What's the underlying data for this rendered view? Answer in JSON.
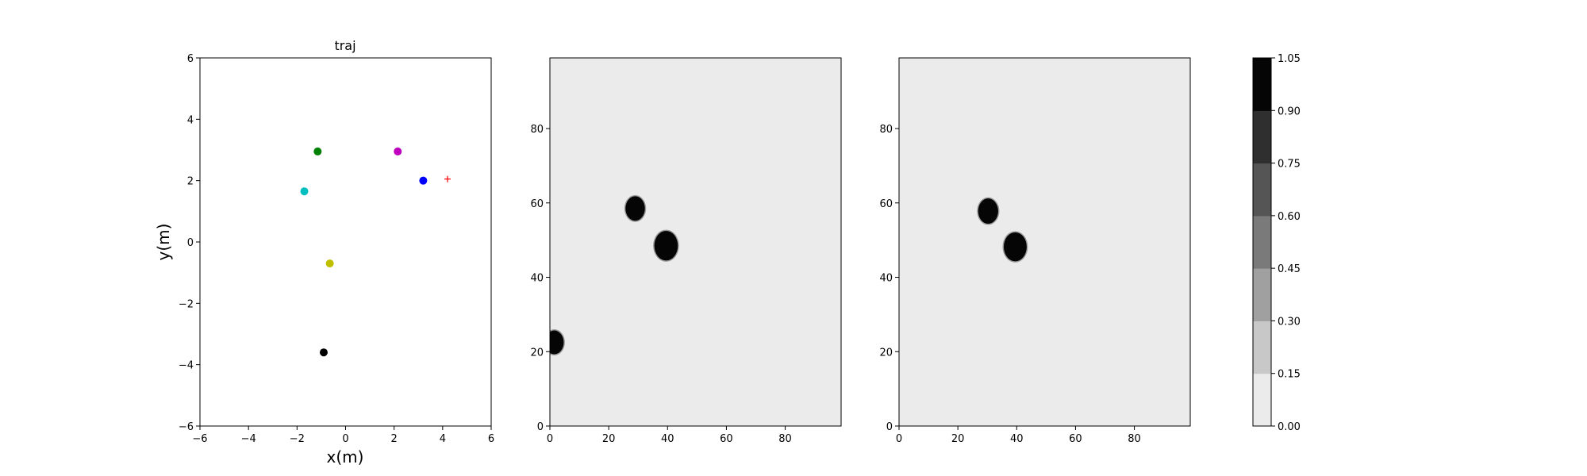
{
  "colors": {
    "background_field": "#ebebeb",
    "obstacle": "#050505",
    "axes": "#000000"
  },
  "chart_data": [
    {
      "type": "scatter",
      "title": "traj",
      "xlabel": "x(m)",
      "ylabel": "y(m)",
      "xlim": [
        -6,
        6
      ],
      "ylim": [
        -6,
        6
      ],
      "xticks": [
        "−6",
        "−4",
        "−2",
        "0",
        "2",
        "4",
        "6"
      ],
      "yticks": [
        "−6",
        "−4",
        "−2",
        "0",
        "2",
        "4",
        "6"
      ],
      "grid": false,
      "points": [
        {
          "x": -1.15,
          "y": 2.95,
          "color": "#008000",
          "marker": "dot"
        },
        {
          "x": 2.15,
          "y": 2.95,
          "color": "#bf00bf",
          "marker": "dot"
        },
        {
          "x": 3.2,
          "y": 2.0,
          "color": "#0000ff",
          "marker": "dot"
        },
        {
          "x": -1.7,
          "y": 1.65,
          "color": "#00bfbf",
          "marker": "dot"
        },
        {
          "x": -0.65,
          "y": -0.7,
          "color": "#bfbf00",
          "marker": "dot"
        },
        {
          "x": -0.9,
          "y": -3.6,
          "color": "#000000",
          "marker": "dot"
        },
        {
          "x": 4.2,
          "y": 2.05,
          "color": "#ff0000",
          "marker": "plus"
        }
      ]
    },
    {
      "type": "heatmap",
      "title": "",
      "xlim": [
        0,
        99
      ],
      "ylim": [
        0,
        99
      ],
      "xticks": [
        "0",
        "20",
        "40",
        "60",
        "80"
      ],
      "yticks": [
        "0",
        "20",
        "40",
        "60",
        "80"
      ],
      "blobs": [
        {
          "cx": 29,
          "cy": 58.5,
          "r": 3.3
        },
        {
          "cx": 39.5,
          "cy": 48.5,
          "r": 4.0
        },
        {
          "cx": 1.5,
          "cy": 22.5,
          "r": 3.2
        }
      ]
    },
    {
      "type": "heatmap",
      "title": "",
      "xlim": [
        0,
        99
      ],
      "ylim": [
        0,
        99
      ],
      "xticks": [
        "0",
        "20",
        "40",
        "60",
        "80"
      ],
      "yticks": [
        "0",
        "20",
        "40",
        "60",
        "80"
      ],
      "blobs": [
        {
          "cx": 30.3,
          "cy": 57.8,
          "r": 3.4
        },
        {
          "cx": 39.5,
          "cy": 48.2,
          "r": 3.9
        }
      ]
    }
  ],
  "colorbar": {
    "ticks": [
      "0.00",
      "0.15",
      "0.30",
      "0.45",
      "0.60",
      "0.75",
      "0.90",
      "1.05"
    ],
    "levels": [
      "#ebebeb",
      "#c8c8c8",
      "#a0a0a0",
      "#7a7a7a",
      "#555555",
      "#2f2f2f",
      "#050505"
    ]
  }
}
